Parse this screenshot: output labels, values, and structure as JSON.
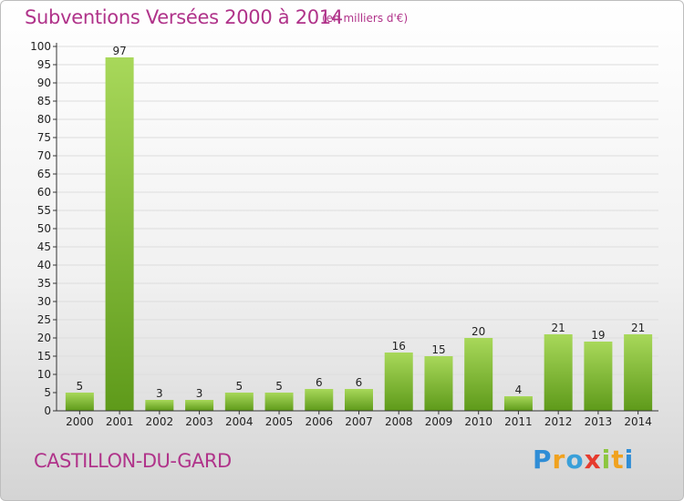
{
  "header": {
    "title": "Subventions Versées 2000 à 2014",
    "unit_note": "(en milliers d'€)"
  },
  "footer": {
    "commune": "CASTILLON-DU-GARD",
    "logo_text": "Proxiti"
  },
  "colors": {
    "title": "#b0338a",
    "bar_top": "#a8d85a",
    "bar_bottom": "#5e9a1a",
    "grid": "#dddddd",
    "axis": "#333333"
  },
  "chart_data": {
    "type": "bar",
    "title": "Subventions Versées 2000 à 2014",
    "xlabel": "",
    "ylabel": "",
    "categories": [
      "2000",
      "2001",
      "2002",
      "2003",
      "2004",
      "2005",
      "2006",
      "2007",
      "2008",
      "2009",
      "2010",
      "2011",
      "2012",
      "2013",
      "2014"
    ],
    "values": [
      5,
      97,
      3,
      3,
      5,
      5,
      6,
      6,
      16,
      15,
      20,
      4,
      21,
      19,
      21
    ],
    "ylim": [
      0,
      100
    ],
    "ytick_step": 5,
    "grid": true,
    "legend": "none"
  }
}
